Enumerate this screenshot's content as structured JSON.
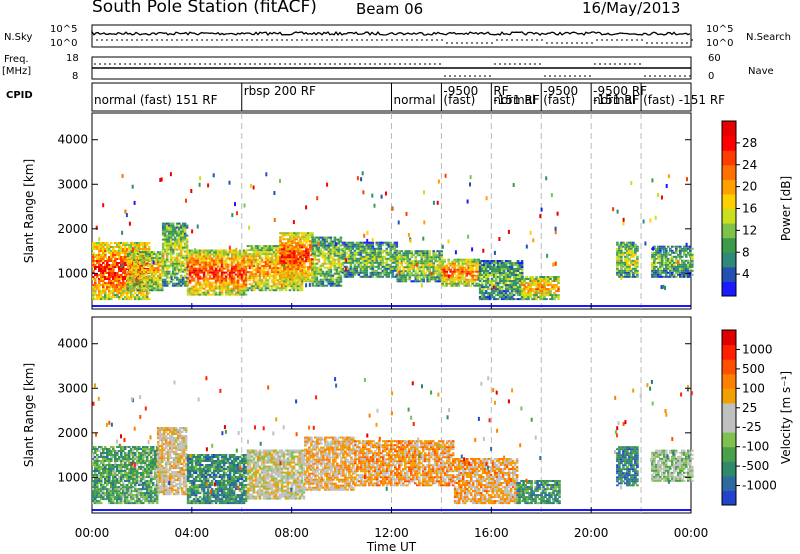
{
  "header": {
    "title": "South Pole Station (fitACF)",
    "beam": "Beam 06",
    "date": "16/May/2013"
  },
  "side_labels": {
    "nsky": "N.Sky",
    "nsearch": "N.Search",
    "freq": "Freq.",
    "mhz": "[MHz]",
    "nave": "Nave",
    "cpid": "CPID"
  },
  "noise_axis": {
    "left_top": "10^5",
    "left_bottom": "10^0",
    "right_top": "10^5",
    "right_bottom": "10^0"
  },
  "freq_axis": {
    "left_top": "18",
    "left_bottom": "8",
    "right_top": "60",
    "right_bottom": "0"
  },
  "cpid_segments": [
    {
      "label": "normal (fast) 151 RF",
      "start": 0,
      "end": 6,
      "row": 0
    },
    {
      "label": "rbsp 200 RF",
      "start": 6,
      "end": 12,
      "row": -1
    },
    {
      "label": "normal",
      "start": 12,
      "end": 14,
      "row": 0
    },
    {
      "label": "-9500",
      "start": 14,
      "end": 16,
      "row": -1
    },
    {
      "label": "(fast)",
      "start": 14,
      "end": 16,
      "row": 0
    },
    {
      "label": "RF",
      "start": 16,
      "end": 18,
      "row": -1
    },
    {
      "label": "-151 RF",
      "start": 16,
      "end": 18,
      "row": 0
    },
    {
      "label": "normal",
      "start": 16,
      "end": 18,
      "row": 0
    },
    {
      "label": "-9500",
      "start": 18,
      "end": 20,
      "row": -1
    },
    {
      "label": "(fast)",
      "start": 18,
      "end": 20,
      "row": 0
    },
    {
      "label": "-9500 RF",
      "start": 20,
      "end": 22,
      "row": -1
    },
    {
      "label": "-151 RF",
      "start": 20,
      "end": 22,
      "row": 0
    },
    {
      "label": "normal",
      "start": 20,
      "end": 22,
      "row": 0
    },
    {
      "label": "(fast) -151 RF",
      "start": 22,
      "end": 24,
      "row": 0
    }
  ],
  "colorbars": {
    "power": {
      "label": "Power [dB]",
      "ticks": [
        "28",
        "24",
        "20",
        "16",
        "12",
        "8",
        "4"
      ],
      "colors": [
        "#1a1aff",
        "#2450b0",
        "#2e8a78",
        "#3c9a4a",
        "#7ec24a",
        "#c8e020",
        "#ffd000",
        "#ffa000",
        "#ff7000",
        "#ff3c00",
        "#ff0000",
        "#e60000"
      ]
    },
    "velocity": {
      "label": "Velocity [m s⁻¹]",
      "ticks": [
        "1000",
        "500",
        "100",
        "25",
        "-25",
        "-100",
        "-500",
        "-1000"
      ],
      "colors": [
        "#2244cc",
        "#2c6aa0",
        "#2e8a6a",
        "#48a048",
        "#80c050",
        "#c0c0c0",
        "#c0c0c0",
        "#f0a000",
        "#ff8000",
        "#ff5000",
        "#ff2000",
        "#e00000"
      ]
    }
  },
  "chart_data": {
    "type": "heatmap",
    "xlabel": "Time UT",
    "ylabel": "Slant Range [km]",
    "x_ticks": [
      "00:00",
      "04:00",
      "08:00",
      "12:00",
      "16:00",
      "20:00",
      "00:00"
    ],
    "y_ticks": [
      "1000",
      "2000",
      "3000",
      "4000"
    ],
    "xlim": [
      0,
      24
    ],
    "ylim": [
      200,
      4600
    ],
    "panels": [
      {
        "name": "Power",
        "units": "dB",
        "range": [
          0,
          30
        ],
        "regions": [
          {
            "t0": 0.0,
            "t1": 2.3,
            "r0": 400,
            "r1": 1700,
            "level": 0.72
          },
          {
            "t0": 1.4,
            "t1": 2.8,
            "r0": 600,
            "r1": 1500,
            "level": 0.5
          },
          {
            "t0": 2.8,
            "t1": 3.8,
            "r0": 700,
            "r1": 2100,
            "level": 0.42
          },
          {
            "t0": 3.8,
            "t1": 6.2,
            "r0": 500,
            "r1": 1500,
            "level": 0.7
          },
          {
            "t0": 6.2,
            "t1": 8.4,
            "r0": 600,
            "r1": 1600,
            "level": 0.58
          },
          {
            "t0": 7.5,
            "t1": 8.8,
            "r0": 800,
            "r1": 1900,
            "level": 0.72
          },
          {
            "t0": 8.8,
            "t1": 10.0,
            "r0": 700,
            "r1": 1800,
            "level": 0.38
          },
          {
            "t0": 10.0,
            "t1": 12.2,
            "r0": 900,
            "r1": 1700,
            "level": 0.32
          },
          {
            "t0": 12.2,
            "t1": 14.0,
            "r0": 800,
            "r1": 1500,
            "level": 0.4
          },
          {
            "t0": 14.0,
            "t1": 15.5,
            "r0": 700,
            "r1": 1300,
            "level": 0.62
          },
          {
            "t0": 15.5,
            "t1": 17.2,
            "r0": 400,
            "r1": 1300,
            "level": 0.3
          },
          {
            "t0": 17.2,
            "t1": 18.7,
            "r0": 400,
            "r1": 900,
            "level": 0.55
          },
          {
            "t0": 21.0,
            "t1": 21.8,
            "r0": 900,
            "r1": 1700,
            "level": 0.4
          },
          {
            "t0": 22.4,
            "t1": 24.0,
            "r0": 900,
            "r1": 1600,
            "level": 0.32
          }
        ]
      },
      {
        "name": "Velocity",
        "units": "m s-1",
        "range": [
          -1000,
          1000
        ],
        "regions": [
          {
            "t0": 0.0,
            "t1": 2.6,
            "r0": 400,
            "r1": 1700,
            "level": 0.3
          },
          {
            "t0": 2.6,
            "t1": 3.8,
            "r0": 600,
            "r1": 2100,
            "level": 0.55
          },
          {
            "t0": 3.8,
            "t1": 6.2,
            "r0": 400,
            "r1": 1500,
            "level": 0.22
          },
          {
            "t0": 6.2,
            "t1": 8.5,
            "r0": 500,
            "r1": 1600,
            "level": 0.5
          },
          {
            "t0": 8.5,
            "t1": 10.5,
            "r0": 700,
            "r1": 1900,
            "level": 0.6
          },
          {
            "t0": 10.5,
            "t1": 14.5,
            "r0": 800,
            "r1": 1800,
            "level": 0.65
          },
          {
            "t0": 14.5,
            "t1": 17.0,
            "r0": 400,
            "r1": 1400,
            "level": 0.62
          },
          {
            "t0": 17.0,
            "t1": 18.7,
            "r0": 400,
            "r1": 900,
            "level": 0.25
          },
          {
            "t0": 21.0,
            "t1": 21.8,
            "r0": 800,
            "r1": 1700,
            "level": 0.18
          },
          {
            "t0": 22.4,
            "t1": 24.0,
            "r0": 900,
            "r1": 1600,
            "level": 0.4
          }
        ]
      }
    ]
  }
}
